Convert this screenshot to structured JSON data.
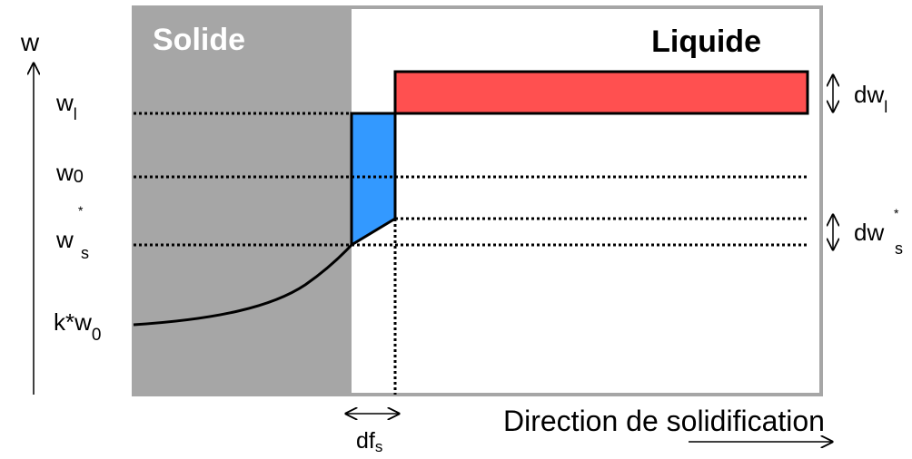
{
  "regions": {
    "solid_label": "Solide",
    "liquid_label": "Liquide"
  },
  "y_axis": {
    "label": "w",
    "levels": [
      {
        "base": "w",
        "sub": "l",
        "sup": ""
      },
      {
        "base": "w",
        "sub": "0",
        "sup": ""
      },
      {
        "base": "w",
        "sub": "s",
        "sup": "*"
      },
      {
        "base": "k*w",
        "sub": "0",
        "sup": ""
      }
    ]
  },
  "increments": {
    "dw_l": {
      "base": "dw",
      "sub": "l",
      "sup": ""
    },
    "dw_s": {
      "base": "dw",
      "sub": "s",
      "sup": "*"
    },
    "df_s": {
      "base": "df",
      "sub": "s",
      "sup": ""
    }
  },
  "x_axis": {
    "label": "Direction de solidification"
  },
  "colors": {
    "solid_fill": "#a6a6a6",
    "frame": "#a6a6a6",
    "liquid_increment": "#ff5050",
    "solid_increment": "#3399ff",
    "line": "#000000",
    "solid_text": "#ffffff"
  }
}
